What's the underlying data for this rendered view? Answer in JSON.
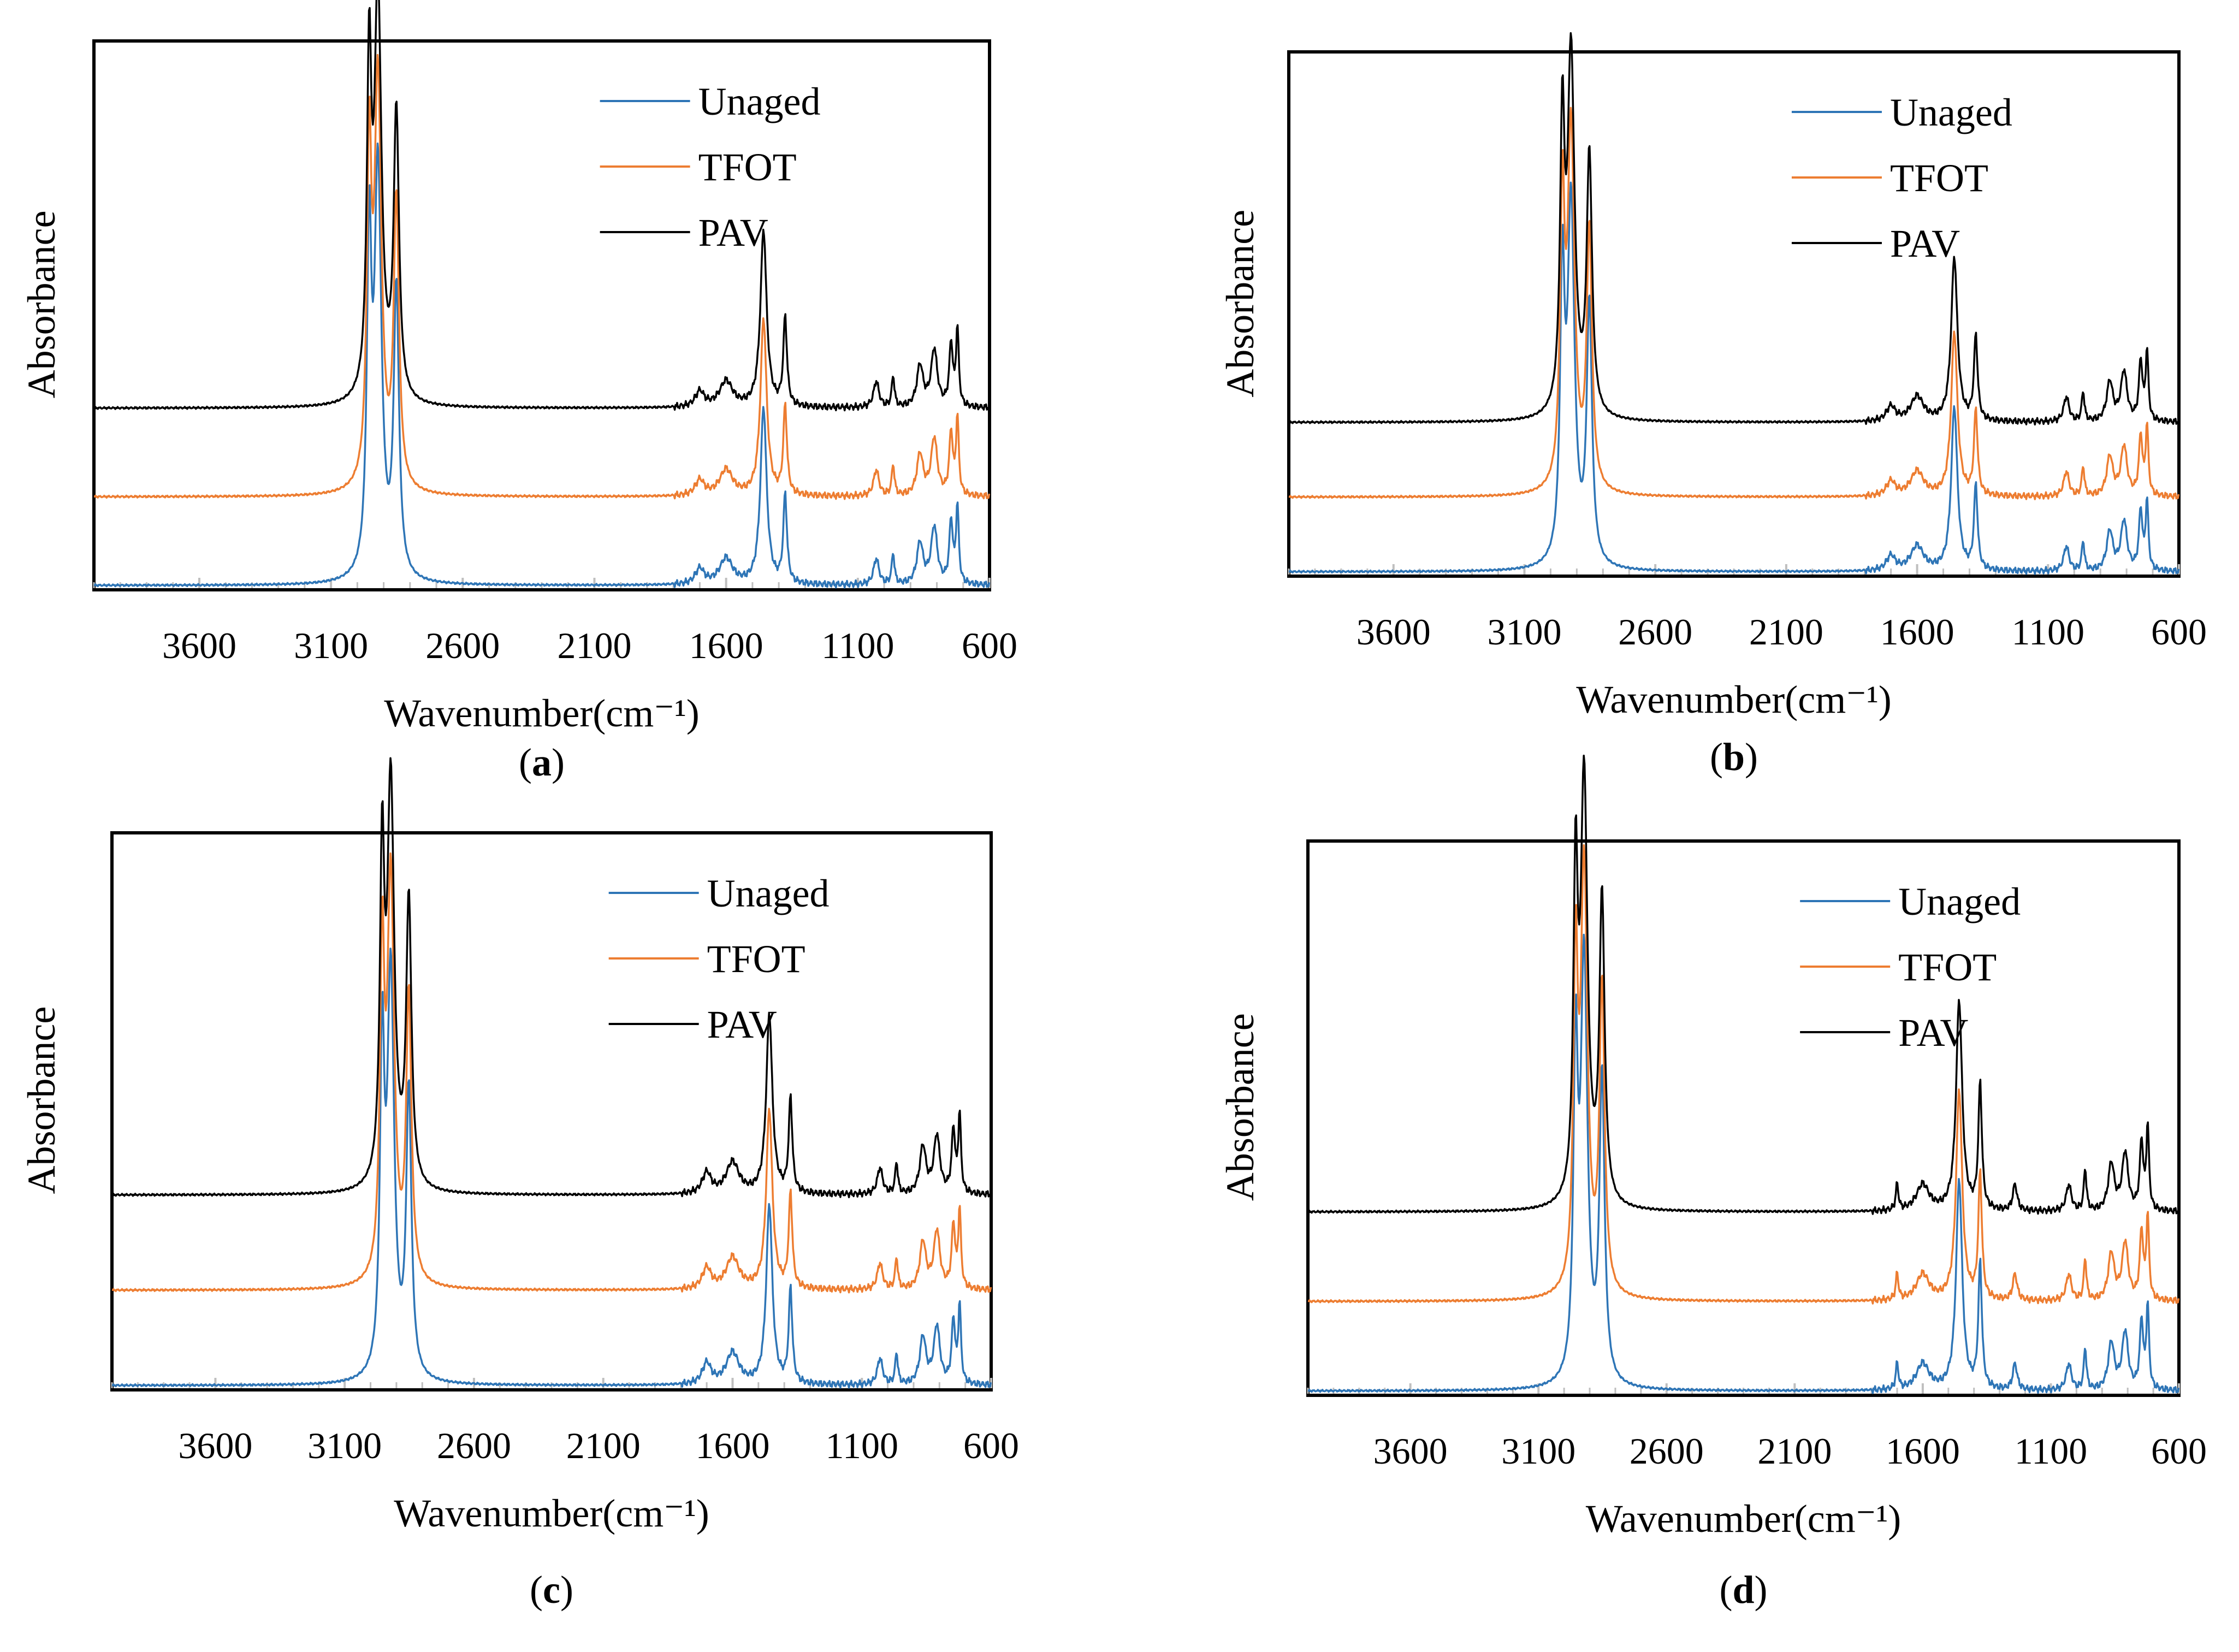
{
  "colors": {
    "unaged": "#2e75b6",
    "tfot": "#ed7d31",
    "pav": "#000000",
    "axis": "#000000",
    "tick": "#bfbfbf"
  },
  "chart_data": [
    {
      "type": "line",
      "panel_label": "(a)",
      "panel_letter": "a",
      "xlabel": "Wavenumber(cm⁻¹)",
      "ylabel": "Absorbance",
      "xlim": [
        4000,
        600
      ],
      "x_reversed": true,
      "xticks": [
        "3600",
        "3100",
        "2600",
        "2100",
        "1600",
        "1100",
        "600"
      ],
      "legend": [
        "Unaged",
        "TFOT",
        "PAV"
      ],
      "series": [
        {
          "name": "Unaged",
          "offset": 0.0,
          "peak_scale": 1.0
        },
        {
          "name": "TFOT",
          "offset": 0.17,
          "peak_scale": 1.0
        },
        {
          "name": "PAV",
          "offset": 0.34,
          "peak_scale": 1.0
        }
      ],
      "spectrum_peaks": [
        [
          2955,
          0.62,
          10
        ],
        [
          2922,
          0.78,
          16
        ],
        [
          2852,
          0.55,
          12
        ],
        [
          1600,
          0.05,
          30
        ],
        [
          1700,
          0.03,
          20
        ],
        [
          1458,
          0.34,
          14
        ],
        [
          1376,
          0.17,
          8
        ],
        [
          1030,
          0.05,
          12
        ],
        [
          966,
          0.06,
          6
        ],
        [
          864,
          0.08,
          14
        ],
        [
          810,
          0.11,
          14
        ],
        [
          746,
          0.12,
          8
        ],
        [
          722,
          0.15,
          6
        ]
      ]
    },
    {
      "type": "line",
      "panel_label": "(b)",
      "panel_letter": "b",
      "xlabel": "Wavenumber(cm⁻¹)",
      "ylabel": "Absorbance",
      "xlim": [
        4000,
        600
      ],
      "x_reversed": true,
      "xticks": [
        "3600",
        "3100",
        "2600",
        "2100",
        "1600",
        "1100",
        "600"
      ],
      "legend": [
        "Unaged",
        "TFOT",
        "PAV"
      ],
      "series": [
        {
          "name": "Unaged",
          "offset": 0.0,
          "peak_scale": 1.0
        },
        {
          "name": "TFOT",
          "offset": 0.15,
          "peak_scale": 1.0
        },
        {
          "name": "PAV",
          "offset": 0.3,
          "peak_scale": 1.0
        }
      ],
      "spectrum_peaks": [
        [
          2955,
          0.56,
          10
        ],
        [
          2922,
          0.72,
          16
        ],
        [
          2852,
          0.52,
          12
        ],
        [
          1600,
          0.05,
          30
        ],
        [
          1700,
          0.03,
          20
        ],
        [
          1458,
          0.33,
          14
        ],
        [
          1376,
          0.17,
          8
        ],
        [
          1030,
          0.05,
          12
        ],
        [
          966,
          0.06,
          6
        ],
        [
          864,
          0.08,
          14
        ],
        [
          810,
          0.1,
          14
        ],
        [
          746,
          0.12,
          8
        ],
        [
          722,
          0.14,
          6
        ]
      ]
    },
    {
      "type": "line",
      "panel_label": "(c)",
      "panel_letter": "c",
      "xlabel": "Wavenumber(cm⁻¹)",
      "ylabel": "Absorbance",
      "xlim": [
        4000,
        600
      ],
      "x_reversed": true,
      "xticks": [
        "3600",
        "3100",
        "2600",
        "2100",
        "1600",
        "1100",
        "600"
      ],
      "legend": [
        "Unaged",
        "TFOT",
        "PAV"
      ],
      "series": [
        {
          "name": "Unaged",
          "offset": 0.0,
          "peak_scale": 1.0
        },
        {
          "name": "TFOT",
          "offset": 0.18,
          "peak_scale": 1.0
        },
        {
          "name": "PAV",
          "offset": 0.36,
          "peak_scale": 1.0
        }
      ],
      "spectrum_peaks": [
        [
          2955,
          0.6,
          10
        ],
        [
          2922,
          0.76,
          16
        ],
        [
          2852,
          0.54,
          12
        ],
        [
          1600,
          0.06,
          30
        ],
        [
          1700,
          0.04,
          20
        ],
        [
          1458,
          0.34,
          14
        ],
        [
          1376,
          0.18,
          8
        ],
        [
          1030,
          0.05,
          12
        ],
        [
          966,
          0.06,
          6
        ],
        [
          864,
          0.09,
          14
        ],
        [
          810,
          0.11,
          14
        ],
        [
          746,
          0.12,
          8
        ],
        [
          722,
          0.15,
          6
        ]
      ]
    },
    {
      "type": "line",
      "panel_label": "(d)",
      "panel_letter": "d",
      "xlabel": "Wavenumber(cm⁻¹)",
      "ylabel": "Absorbance",
      "xlim": [
        4000,
        600
      ],
      "x_reversed": true,
      "xticks": [
        "3600",
        "3100",
        "2600",
        "2100",
        "1600",
        "1100",
        "600"
      ],
      "legend": [
        "Unaged",
        "TFOT",
        "PAV"
      ],
      "series": [
        {
          "name": "Unaged",
          "offset": 0.0,
          "peak_scale": 1.0
        },
        {
          "name": "TFOT",
          "offset": 0.17,
          "peak_scale": 1.0
        },
        {
          "name": "PAV",
          "offset": 0.34,
          "peak_scale": 1.0
        }
      ],
      "spectrum_peaks": [
        [
          2955,
          0.6,
          10
        ],
        [
          2922,
          0.8,
          16
        ],
        [
          2852,
          0.58,
          12
        ],
        [
          1600,
          0.05,
          30
        ],
        [
          1700,
          0.05,
          6
        ],
        [
          1458,
          0.4,
          14
        ],
        [
          1376,
          0.24,
          8
        ],
        [
          1240,
          0.05,
          10
        ],
        [
          1030,
          0.05,
          12
        ],
        [
          966,
          0.08,
          6
        ],
        [
          864,
          0.09,
          14
        ],
        [
          810,
          0.11,
          14
        ],
        [
          746,
          0.13,
          8
        ],
        [
          722,
          0.16,
          6
        ]
      ]
    }
  ]
}
